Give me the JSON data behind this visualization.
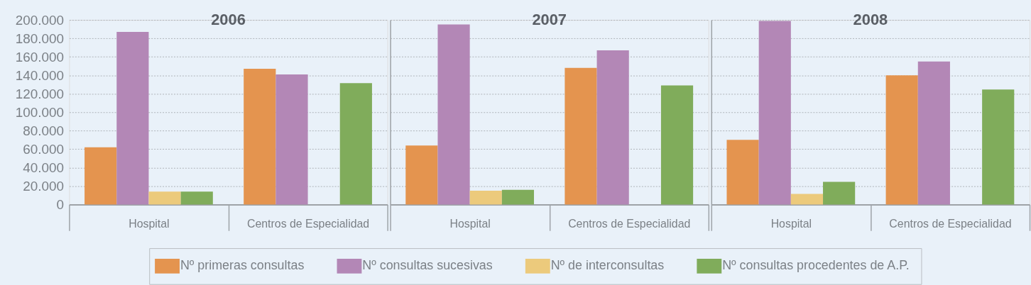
{
  "chart_data": [
    {
      "type": "bar",
      "title": "2006",
      "categories": [
        "Hospital",
        "Centros de Especialidad"
      ],
      "series": [
        {
          "name": "Nº primeras consultas",
          "color": "#e4944f",
          "values": [
            62000,
            147000
          ]
        },
        {
          "name": "Nº consultas sucesivas",
          "color": "#b387b6",
          "values": [
            187000,
            141000
          ]
        },
        {
          "name": "Nº de interconsultas",
          "color": "#ecca7c",
          "values": [
            14000,
            null
          ]
        },
        {
          "name": "Nº consultas procedentes de A.P.",
          "color": "#80ac5b",
          "values": [
            14000,
            131500
          ]
        }
      ],
      "ylim": [
        0,
        200000
      ],
      "yticks": [
        0,
        {
          "value": 20000,
          "label": "20.000"
        },
        {
          "value": 40000,
          "label": "40.000"
        },
        {
          "value": 60000,
          "label": "60.000"
        },
        {
          "value": 80000,
          "label": "80.000"
        },
        {
          "value": 100000,
          "label": "100.000"
        },
        {
          "value": 120000,
          "label": "120.000"
        },
        {
          "value": 140000,
          "label": "140.000"
        },
        {
          "value": 160000,
          "label": "160.000"
        },
        {
          "value": 180000,
          "label": "180.000"
        },
        {
          "value": 200000,
          "label": "200.000"
        }
      ],
      "grid": "y",
      "legend": "bottom"
    },
    {
      "type": "bar",
      "title": "2007",
      "categories": [
        "Hospital",
        "Centros de Especialidad"
      ],
      "series": [
        {
          "name": "Nº primeras consultas",
          "color": "#e4944f",
          "values": [
            64000,
            148000
          ]
        },
        {
          "name": "Nº consultas sucesivas",
          "color": "#b387b6",
          "values": [
            195000,
            167000
          ]
        },
        {
          "name": "Nº de interconsultas",
          "color": "#ecca7c",
          "values": [
            15000,
            null
          ]
        },
        {
          "name": "Nº consultas procedentes de A.P.",
          "color": "#80ac5b",
          "values": [
            16000,
            129000
          ]
        }
      ],
      "ylim": [
        0,
        200000
      ],
      "yticks": [
        0,
        20000,
        40000,
        60000,
        80000,
        100000,
        120000,
        140000,
        160000,
        180000,
        200000
      ],
      "grid": "y",
      "tick_labels": "x"
    },
    {
      "type": "bar",
      "title": "2008",
      "categories": [
        "Hospital",
        "Centros de Especialidad"
      ],
      "series": [
        {
          "name": "Nº primeras consultas",
          "color": "#e4944f",
          "values": [
            70000,
            140000
          ]
        },
        {
          "name": "Nº consultas sucesivas",
          "color": "#b387b6",
          "values": [
            199000,
            155000
          ]
        },
        {
          "name": "Nº de interconsultas",
          "color": "#ecca7c",
          "values": [
            11500,
            null
          ]
        },
        {
          "name": "Nº consultas procedentes de A.P.",
          "color": "#80ac5b",
          "values": [
            24500,
            124500
          ]
        }
      ],
      "ylim": [
        0,
        200000
      ],
      "yticks": [
        0,
        20000,
        40000,
        60000,
        80000,
        100000,
        120000,
        140000,
        160000,
        180000,
        200000
      ],
      "grid": "y",
      "tick_labels": "x"
    }
  ]
}
